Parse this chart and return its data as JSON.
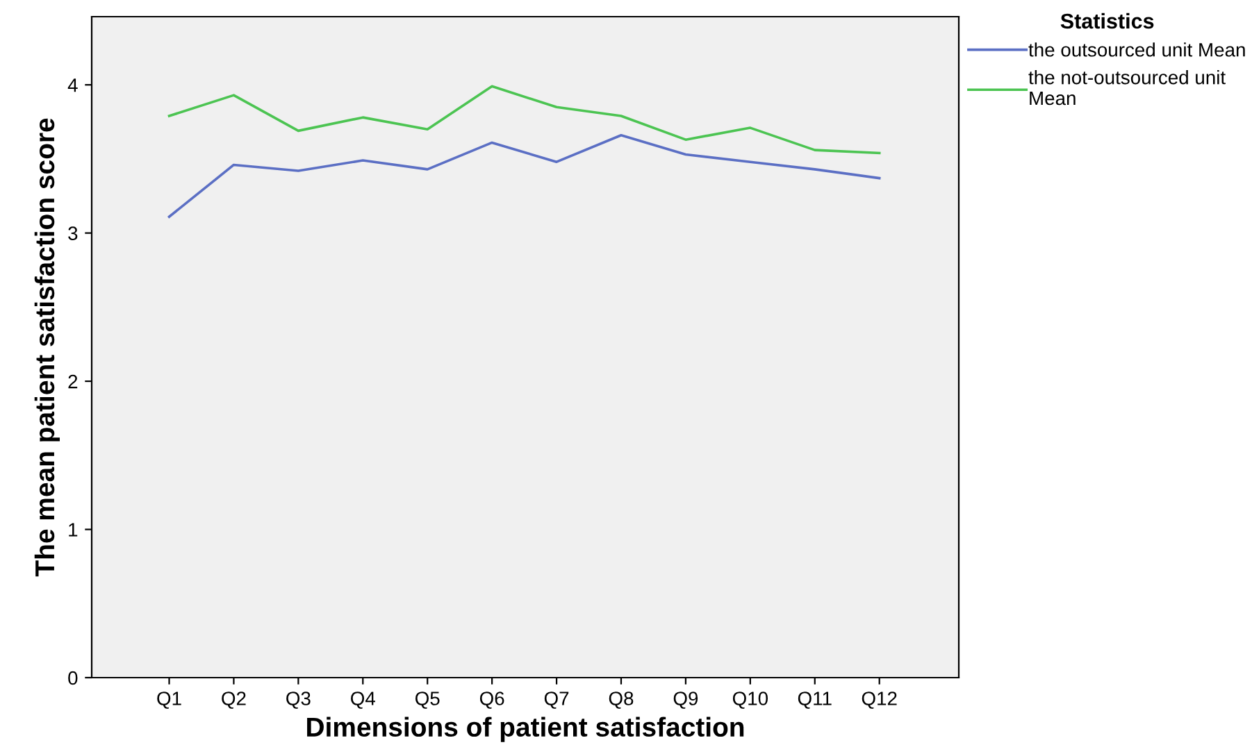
{
  "chart_data": {
    "type": "line",
    "xlabel": "Dimensions of patient satisfaction",
    "ylabel": "The mean patient satisfaction score",
    "legend_title": "Statistics",
    "legend": "top right",
    "grid": false,
    "marker": "none",
    "line_style": "solid",
    "categories": [
      "Q1",
      "Q2",
      "Q3",
      "Q4",
      "Q5",
      "Q6",
      "Q7",
      "Q8",
      "Q9",
      "Q10",
      "Q11",
      "Q12"
    ],
    "ylim": [
      0,
      4.46
    ],
    "yticks": [
      0,
      1,
      2,
      3,
      4
    ],
    "series": [
      {
        "name": "the outsourced unit Mean",
        "color": "#5b6fc4",
        "values": [
          3.11,
          3.46,
          3.42,
          3.49,
          3.43,
          3.61,
          3.48,
          3.66,
          3.53,
          3.48,
          3.43,
          3.37
        ]
      },
      {
        "name": "the not-outsourced unit\nMean",
        "color": "#4cc452",
        "values": [
          3.79,
          3.93,
          3.69,
          3.78,
          3.7,
          3.99,
          3.85,
          3.79,
          3.63,
          3.71,
          3.56,
          3.54
        ]
      }
    ]
  }
}
